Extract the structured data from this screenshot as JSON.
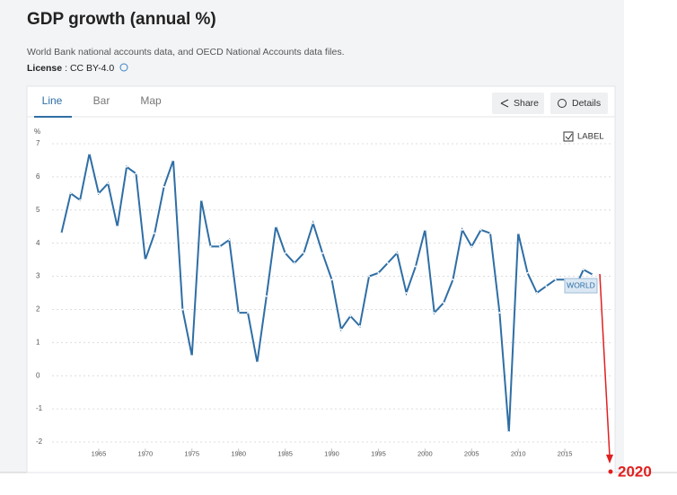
{
  "page": {
    "title": "GDP growth (annual %)",
    "subtitle": "World Bank national accounts data, and OECD National Accounts data files.",
    "license_label": "License",
    "license_value": ": CC BY-4.0",
    "tabs": [
      "Line",
      "Bar",
      "Map"
    ],
    "buttons": [
      "Share",
      "Details"
    ]
  },
  "chart_data": {
    "type": "line",
    "y_label": "%",
    "checkbox_label": "LABEL",
    "annotation": "2020",
    "x": [
      1961,
      1962,
      1963,
      1964,
      1965,
      1966,
      1967,
      1968,
      1969,
      1970,
      1971,
      1972,
      1973,
      1974,
      1975,
      1976,
      1977,
      1978,
      1979,
      1980,
      1981,
      1982,
      1983,
      1984,
      1985,
      1986,
      1987,
      1988,
      1989,
      1990,
      1991,
      1992,
      1993,
      1994,
      1995,
      1996,
      1997,
      1998,
      1999,
      2000,
      2001,
      2002,
      2003,
      2004,
      2005,
      2006,
      2007,
      2008,
      2009,
      2010,
      2011,
      2012,
      2013,
      2014,
      2015,
      2016,
      2017,
      2018
    ],
    "series": [
      {
        "name": "WORLD",
        "color": "#2f6ea5",
        "values": [
          4.3,
          5.5,
          5.3,
          6.7,
          5.5,
          5.8,
          4.5,
          6.3,
          6.1,
          3.5,
          4.3,
          5.7,
          6.5,
          2.0,
          0.6,
          5.3,
          3.9,
          3.9,
          4.1,
          1.9,
          1.9,
          0.4,
          2.4,
          4.5,
          3.7,
          3.4,
          3.7,
          4.6,
          3.7,
          2.9,
          1.4,
          1.8,
          1.5,
          3.0,
          3.1,
          3.4,
          3.7,
          2.5,
          3.3,
          4.4,
          1.9,
          2.2,
          2.9,
          4.4,
          3.9,
          4.4,
          4.3,
          1.9,
          -1.7,
          4.3,
          3.1,
          2.5,
          2.7,
          2.9,
          2.9,
          2.6,
          3.2,
          3.05
        ]
      }
    ],
    "xlim": [
      1960,
      2020
    ],
    "xticks": [
      1965,
      1970,
      1975,
      1980,
      1985,
      1990,
      1995,
      2000,
      2005,
      2010,
      2015
    ],
    "ylim": [
      -2.2,
      7.3
    ],
    "yticks": [
      -2,
      -1,
      0,
      1,
      2,
      3,
      4,
      5,
      6,
      7
    ],
    "grid": true
  }
}
